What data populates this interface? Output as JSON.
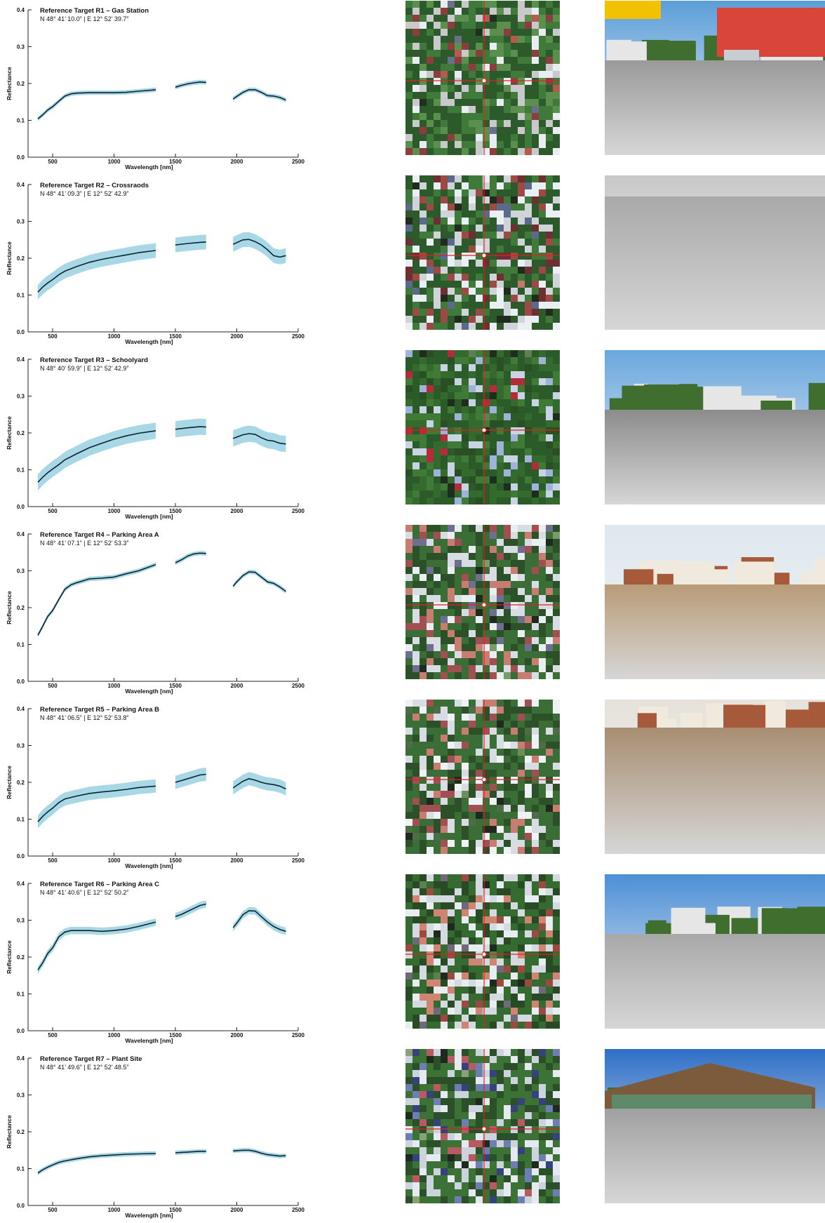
{
  "axes": {
    "xlabel": "Wavelength [nm]",
    "ylabel": "Reflectance",
    "xticks": [
      500,
      1000,
      1500,
      2000,
      2500
    ],
    "yticks": [
      "0.0",
      "0.1",
      "0.2",
      "0.3",
      "0.4"
    ],
    "xlim": [
      300,
      2500
    ],
    "ylim": [
      0,
      0.4
    ]
  },
  "colors": {
    "mean_line": "#0d2230",
    "std_band": "#a8d8e6",
    "crosshair": "#e02020",
    "axis": "#222222"
  },
  "chart_data": [
    {
      "type": "line",
      "title": "Reference Target R1 – Gas Station",
      "coords": "N 48° 41’ 10.0” | E 12° 52’ 39.7”",
      "segments": [
        [
          [
            380,
            0.104
          ],
          [
            420,
            0.115
          ],
          [
            460,
            0.128
          ],
          [
            500,
            0.137
          ],
          [
            550,
            0.152
          ],
          [
            600,
            0.166
          ],
          [
            650,
            0.172
          ],
          [
            700,
            0.174
          ],
          [
            800,
            0.175
          ],
          [
            900,
            0.175
          ],
          [
            1000,
            0.175
          ],
          [
            1100,
            0.176
          ],
          [
            1200,
            0.179
          ],
          [
            1340,
            0.183
          ]
        ],
        [
          [
            1500,
            0.19
          ],
          [
            1550,
            0.195
          ],
          [
            1600,
            0.199
          ],
          [
            1650,
            0.202
          ],
          [
            1700,
            0.204
          ],
          [
            1750,
            0.203
          ]
        ],
        [
          [
            1970,
            0.158
          ],
          [
            2000,
            0.165
          ],
          [
            2050,
            0.176
          ],
          [
            2100,
            0.183
          ],
          [
            2150,
            0.183
          ],
          [
            2200,
            0.176
          ],
          [
            2250,
            0.167
          ],
          [
            2300,
            0.166
          ],
          [
            2350,
            0.162
          ],
          [
            2400,
            0.155
          ]
        ]
      ],
      "std": 0.006
    },
    {
      "type": "line",
      "title": "Reference Target R2 – Crossraods",
      "coords": "N 48° 41’ 09.3” | E 12° 52’ 42.9”",
      "segments": [
        [
          [
            380,
            0.108
          ],
          [
            420,
            0.122
          ],
          [
            460,
            0.133
          ],
          [
            500,
            0.142
          ],
          [
            550,
            0.155
          ],
          [
            600,
            0.165
          ],
          [
            700,
            0.178
          ],
          [
            800,
            0.189
          ],
          [
            900,
            0.197
          ],
          [
            1000,
            0.203
          ],
          [
            1100,
            0.209
          ],
          [
            1200,
            0.215
          ],
          [
            1340,
            0.221
          ]
        ],
        [
          [
            1500,
            0.236
          ],
          [
            1600,
            0.24
          ],
          [
            1700,
            0.243
          ],
          [
            1750,
            0.244
          ]
        ],
        [
          [
            1970,
            0.238
          ],
          [
            2050,
            0.25
          ],
          [
            2100,
            0.251
          ],
          [
            2150,
            0.245
          ],
          [
            2200,
            0.236
          ],
          [
            2250,
            0.223
          ],
          [
            2300,
            0.207
          ],
          [
            2350,
            0.203
          ],
          [
            2400,
            0.207
          ]
        ]
      ],
      "std": 0.02
    },
    {
      "type": "line",
      "title": "Reference Target R3 – Schoolyard",
      "coords": "N 48° 40’ 59.9” | E 12° 52’ 42.9”",
      "segments": [
        [
          [
            380,
            0.066
          ],
          [
            420,
            0.08
          ],
          [
            460,
            0.092
          ],
          [
            500,
            0.102
          ],
          [
            550,
            0.114
          ],
          [
            600,
            0.127
          ],
          [
            700,
            0.144
          ],
          [
            800,
            0.16
          ],
          [
            900,
            0.172
          ],
          [
            1000,
            0.183
          ],
          [
            1100,
            0.192
          ],
          [
            1200,
            0.199
          ],
          [
            1340,
            0.206
          ]
        ],
        [
          [
            1500,
            0.21
          ],
          [
            1600,
            0.214
          ],
          [
            1700,
            0.217
          ],
          [
            1750,
            0.216
          ]
        ],
        [
          [
            1970,
            0.185
          ],
          [
            2050,
            0.195
          ],
          [
            2100,
            0.198
          ],
          [
            2150,
            0.196
          ],
          [
            2200,
            0.187
          ],
          [
            2250,
            0.18
          ],
          [
            2300,
            0.178
          ],
          [
            2350,
            0.172
          ],
          [
            2400,
            0.17
          ]
        ]
      ],
      "std": 0.022
    },
    {
      "type": "line",
      "title": "Reference Target R4 – Parking Area A",
      "coords": "N 48° 41’ 07.1” | E 12° 52’ 53.3”",
      "segments": [
        [
          [
            380,
            0.125
          ],
          [
            420,
            0.15
          ],
          [
            460,
            0.176
          ],
          [
            500,
            0.192
          ],
          [
            550,
            0.222
          ],
          [
            600,
            0.25
          ],
          [
            650,
            0.262
          ],
          [
            700,
            0.268
          ],
          [
            800,
            0.278
          ],
          [
            900,
            0.28
          ],
          [
            1000,
            0.283
          ],
          [
            1100,
            0.292
          ],
          [
            1200,
            0.3
          ],
          [
            1340,
            0.317
          ]
        ],
        [
          [
            1500,
            0.322
          ],
          [
            1550,
            0.33
          ],
          [
            1600,
            0.34
          ],
          [
            1650,
            0.346
          ],
          [
            1700,
            0.348
          ],
          [
            1750,
            0.347
          ]
        ],
        [
          [
            1970,
            0.258
          ],
          [
            2000,
            0.27
          ],
          [
            2050,
            0.287
          ],
          [
            2100,
            0.297
          ],
          [
            2150,
            0.296
          ],
          [
            2200,
            0.283
          ],
          [
            2250,
            0.27
          ],
          [
            2300,
            0.266
          ],
          [
            2350,
            0.256
          ],
          [
            2400,
            0.244
          ]
        ]
      ],
      "std": 0.006
    },
    {
      "type": "line",
      "title": "Reference Target R5 – Parking Area B",
      "coords": "N 48° 41’ 06.5” | E 12° 52’ 53.8”",
      "segments": [
        [
          [
            380,
            0.093
          ],
          [
            420,
            0.108
          ],
          [
            460,
            0.12
          ],
          [
            500,
            0.13
          ],
          [
            550,
            0.145
          ],
          [
            600,
            0.155
          ],
          [
            700,
            0.163
          ],
          [
            800,
            0.17
          ],
          [
            900,
            0.174
          ],
          [
            1000,
            0.177
          ],
          [
            1100,
            0.181
          ],
          [
            1200,
            0.186
          ],
          [
            1340,
            0.19
          ]
        ],
        [
          [
            1500,
            0.2
          ],
          [
            1600,
            0.21
          ],
          [
            1700,
            0.22
          ],
          [
            1750,
            0.222
          ]
        ],
        [
          [
            1970,
            0.185
          ],
          [
            2050,
            0.203
          ],
          [
            2100,
            0.21
          ],
          [
            2150,
            0.206
          ],
          [
            2200,
            0.2
          ],
          [
            2250,
            0.196
          ],
          [
            2300,
            0.194
          ],
          [
            2350,
            0.19
          ],
          [
            2400,
            0.182
          ]
        ]
      ],
      "std": 0.018
    },
    {
      "type": "line",
      "title": "Reference Target R6 – Parking Area C",
      "coords": "N 48° 41’ 40.6” | E 12° 52’ 50.2”",
      "segments": [
        [
          [
            380,
            0.165
          ],
          [
            420,
            0.185
          ],
          [
            460,
            0.21
          ],
          [
            500,
            0.225
          ],
          [
            550,
            0.255
          ],
          [
            600,
            0.268
          ],
          [
            650,
            0.272
          ],
          [
            700,
            0.272
          ],
          [
            800,
            0.272
          ],
          [
            900,
            0.27
          ],
          [
            1000,
            0.272
          ],
          [
            1100,
            0.276
          ],
          [
            1200,
            0.283
          ],
          [
            1340,
            0.295
          ]
        ],
        [
          [
            1500,
            0.31
          ],
          [
            1550,
            0.316
          ],
          [
            1600,
            0.324
          ],
          [
            1650,
            0.332
          ],
          [
            1700,
            0.34
          ],
          [
            1750,
            0.344
          ]
        ],
        [
          [
            1970,
            0.28
          ],
          [
            2000,
            0.292
          ],
          [
            2050,
            0.315
          ],
          [
            2100,
            0.326
          ],
          [
            2150,
            0.325
          ],
          [
            2200,
            0.31
          ],
          [
            2250,
            0.295
          ],
          [
            2300,
            0.283
          ],
          [
            2350,
            0.275
          ],
          [
            2400,
            0.27
          ]
        ]
      ],
      "std": 0.01
    },
    {
      "type": "line",
      "title": "Reference Target R7 – Plant Site",
      "coords": "N 48° 41’ 49.6” | E 12° 52’ 48.5”",
      "segments": [
        [
          [
            380,
            0.088
          ],
          [
            420,
            0.097
          ],
          [
            460,
            0.104
          ],
          [
            500,
            0.11
          ],
          [
            550,
            0.117
          ],
          [
            600,
            0.121
          ],
          [
            700,
            0.127
          ],
          [
            800,
            0.132
          ],
          [
            900,
            0.135
          ],
          [
            1000,
            0.137
          ],
          [
            1100,
            0.139
          ],
          [
            1200,
            0.14
          ],
          [
            1340,
            0.141
          ]
        ],
        [
          [
            1500,
            0.143
          ],
          [
            1600,
            0.145
          ],
          [
            1700,
            0.147
          ],
          [
            1750,
            0.147
          ]
        ],
        [
          [
            1970,
            0.148
          ],
          [
            2050,
            0.15
          ],
          [
            2100,
            0.15
          ],
          [
            2150,
            0.147
          ],
          [
            2200,
            0.142
          ],
          [
            2250,
            0.138
          ],
          [
            2300,
            0.136
          ],
          [
            2350,
            0.134
          ],
          [
            2400,
            0.135
          ]
        ]
      ],
      "std": 0.006
    }
  ],
  "satellite_thumbnails": [
    {
      "palette": [
        "#2d5a2b",
        "#3f7a3a",
        "#5b8f4e",
        "#c9c9cc",
        "#e7edf0",
        "#8c3e3e",
        "#b45b50",
        "#6a6f8a",
        "#1f2f20"
      ]
    },
    {
      "palette": [
        "#2d5a2b",
        "#3f7a3a",
        "#cfd4d8",
        "#e9eff2",
        "#9b4a46",
        "#6e2f33",
        "#5a6a8a",
        "#202b1e",
        "#c07a6a"
      ]
    },
    {
      "palette": [
        "#2b5b28",
        "#356a2e",
        "#3f7a36",
        "#2a4f25",
        "#c8d4e4",
        "#9fb2d8",
        "#b32c3a",
        "#1f2e1c",
        "#5d7f52"
      ]
    },
    {
      "palette": [
        "#3a6e36",
        "#2c5129",
        "#d7dde2",
        "#e9eef1",
        "#c77d72",
        "#a05050",
        "#6e6e8e",
        "#1e2a1d",
        "#7a9c6b"
      ]
    },
    {
      "palette": [
        "#3a6e36",
        "#2c5129",
        "#d7dde2",
        "#eef2f4",
        "#c77d72",
        "#a05050",
        "#4e6c46",
        "#1e2a1d",
        "#6b8f5b"
      ]
    },
    {
      "palette": [
        "#356a30",
        "#284a25",
        "#d4dbe0",
        "#e8edf0",
        "#cf8571",
        "#9b4a42",
        "#6f6a7a",
        "#1e2a1d",
        "#5b8150"
      ]
    },
    {
      "palette": [
        "#3d7237",
        "#2b4f28",
        "#cbd3dc",
        "#e4eaef",
        "#6d7fb0",
        "#35437a",
        "#b85a62",
        "#1d2a1d",
        "#8aa077"
      ]
    }
  ],
  "photos": [
    {
      "sky": "#5b9ed8",
      "ground": "#9a9a9a",
      "scene": "gas-station"
    },
    {
      "sky": "#c8c8c8",
      "ground": "#a9a9a9",
      "scene": "road"
    },
    {
      "sky": "#6aa7de",
      "ground": "#8c8c8c",
      "scene": "schoolyard"
    },
    {
      "sky": "#dfe8ef",
      "ground": "#b89c78",
      "scene": "parking-sand"
    },
    {
      "sky": "#e6e2da",
      "ground": "#a88e72",
      "scene": "parking-paver"
    },
    {
      "sky": "#4d8fd6",
      "ground": "#a8a8a8",
      "scene": "parking-trees"
    },
    {
      "sky": "#2f6fc6",
      "ground": "#a0a0a0",
      "scene": "plant-site"
    }
  ]
}
